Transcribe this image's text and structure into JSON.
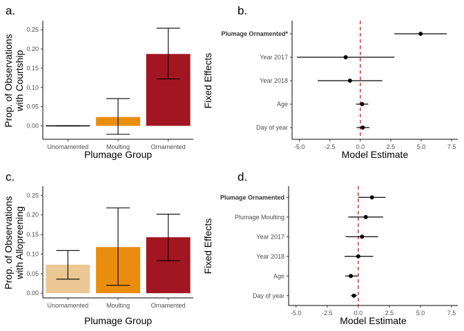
{
  "chart_data": [
    {
      "panel": "a.",
      "type": "bar",
      "categories": [
        "Unornamented",
        "Moulting",
        "Ornamented"
      ],
      "values": [
        0.0,
        0.023,
        0.187
      ],
      "error_low": [
        0.0,
        -0.022,
        0.122
      ],
      "error_high": [
        0.0,
        0.071,
        0.254
      ],
      "colors": [
        "#ebc893",
        "#ea8d0e",
        "#a11620"
      ],
      "xlabel": "Plumage Group",
      "ylabel_lines": [
        "Prop. of Observations",
        "with Courtship"
      ],
      "yticks": [
        "0.00",
        "0.05",
        "0.10",
        "0.15",
        "0.20",
        "0.25"
      ],
      "ylim": [
        -0.035,
        0.27
      ],
      "grid": false
    },
    {
      "panel": "b.",
      "type": "scatter",
      "orientation": "horizontal-forest",
      "categories": [
        "Plumage Ornamented*",
        "Year 2017",
        "Year 2018",
        "Age",
        "Day of year"
      ],
      "bold_categories": [
        true,
        false,
        false,
        false,
        false
      ],
      "estimates": [
        4.95,
        -1.2,
        -0.85,
        0.15,
        0.2
      ],
      "ci_low": [
        2.8,
        -5.2,
        -3.5,
        -0.35,
        -0.3
      ],
      "ci_high": [
        7.1,
        2.8,
        1.8,
        0.65,
        0.75
      ],
      "xlabel": "Model Estimate",
      "ylabel": "Fixed Effects",
      "xticks": [
        "-5.0",
        "-2.5",
        "0.0",
        "2.5",
        "5.0",
        "7.5"
      ],
      "xlim": [
        -5.6,
        8.0
      ],
      "reference_line": 0,
      "reference_color": "#ff0000",
      "grid": false
    },
    {
      "panel": "c.",
      "type": "bar",
      "categories": [
        "Unornamented",
        "Moulting",
        "Ornamented"
      ],
      "values": [
        0.073,
        0.118,
        0.143
      ],
      "error_low": [
        0.036,
        0.02,
        0.083
      ],
      "error_high": [
        0.109,
        0.218,
        0.202
      ],
      "colors": [
        "#ebc893",
        "#ea8d0e",
        "#a11620"
      ],
      "xlabel": "Plumage Group",
      "ylabel_lines": [
        "Prop. of Observations",
        "with Allopreening"
      ],
      "yticks": [
        "0.00",
        "0.05",
        "0.10",
        "0.15",
        "0.20",
        "0.25"
      ],
      "ylim": [
        -0.012,
        0.27
      ],
      "grid": false
    },
    {
      "panel": "d.",
      "type": "scatter",
      "orientation": "horizontal-forest",
      "categories": [
        "Plumage Ornamented",
        "Plumage Moulting",
        "Year 2017",
        "Year 2018",
        "Age",
        "Day of year"
      ],
      "bold_categories": [
        true,
        false,
        false,
        false,
        false,
        false
      ],
      "estimates": [
        1.1,
        0.6,
        0.3,
        0.0,
        -0.6,
        -0.35
      ],
      "ci_low": [
        0.0,
        -0.8,
        -1.0,
        -1.1,
        -1.05,
        -0.6
      ],
      "ci_high": [
        2.2,
        2.0,
        1.6,
        1.2,
        -0.05,
        -0.1
      ],
      "xlabel": "Model Estimate",
      "ylabel": "Fixed Effects",
      "xticks": [
        "-5.0",
        "-2.5",
        "0.0",
        "2.5",
        "5.0",
        "7.5"
      ],
      "xlim": [
        -5.6,
        8.0
      ],
      "reference_line": 0,
      "reference_color": "#ff0000",
      "grid": false
    }
  ]
}
